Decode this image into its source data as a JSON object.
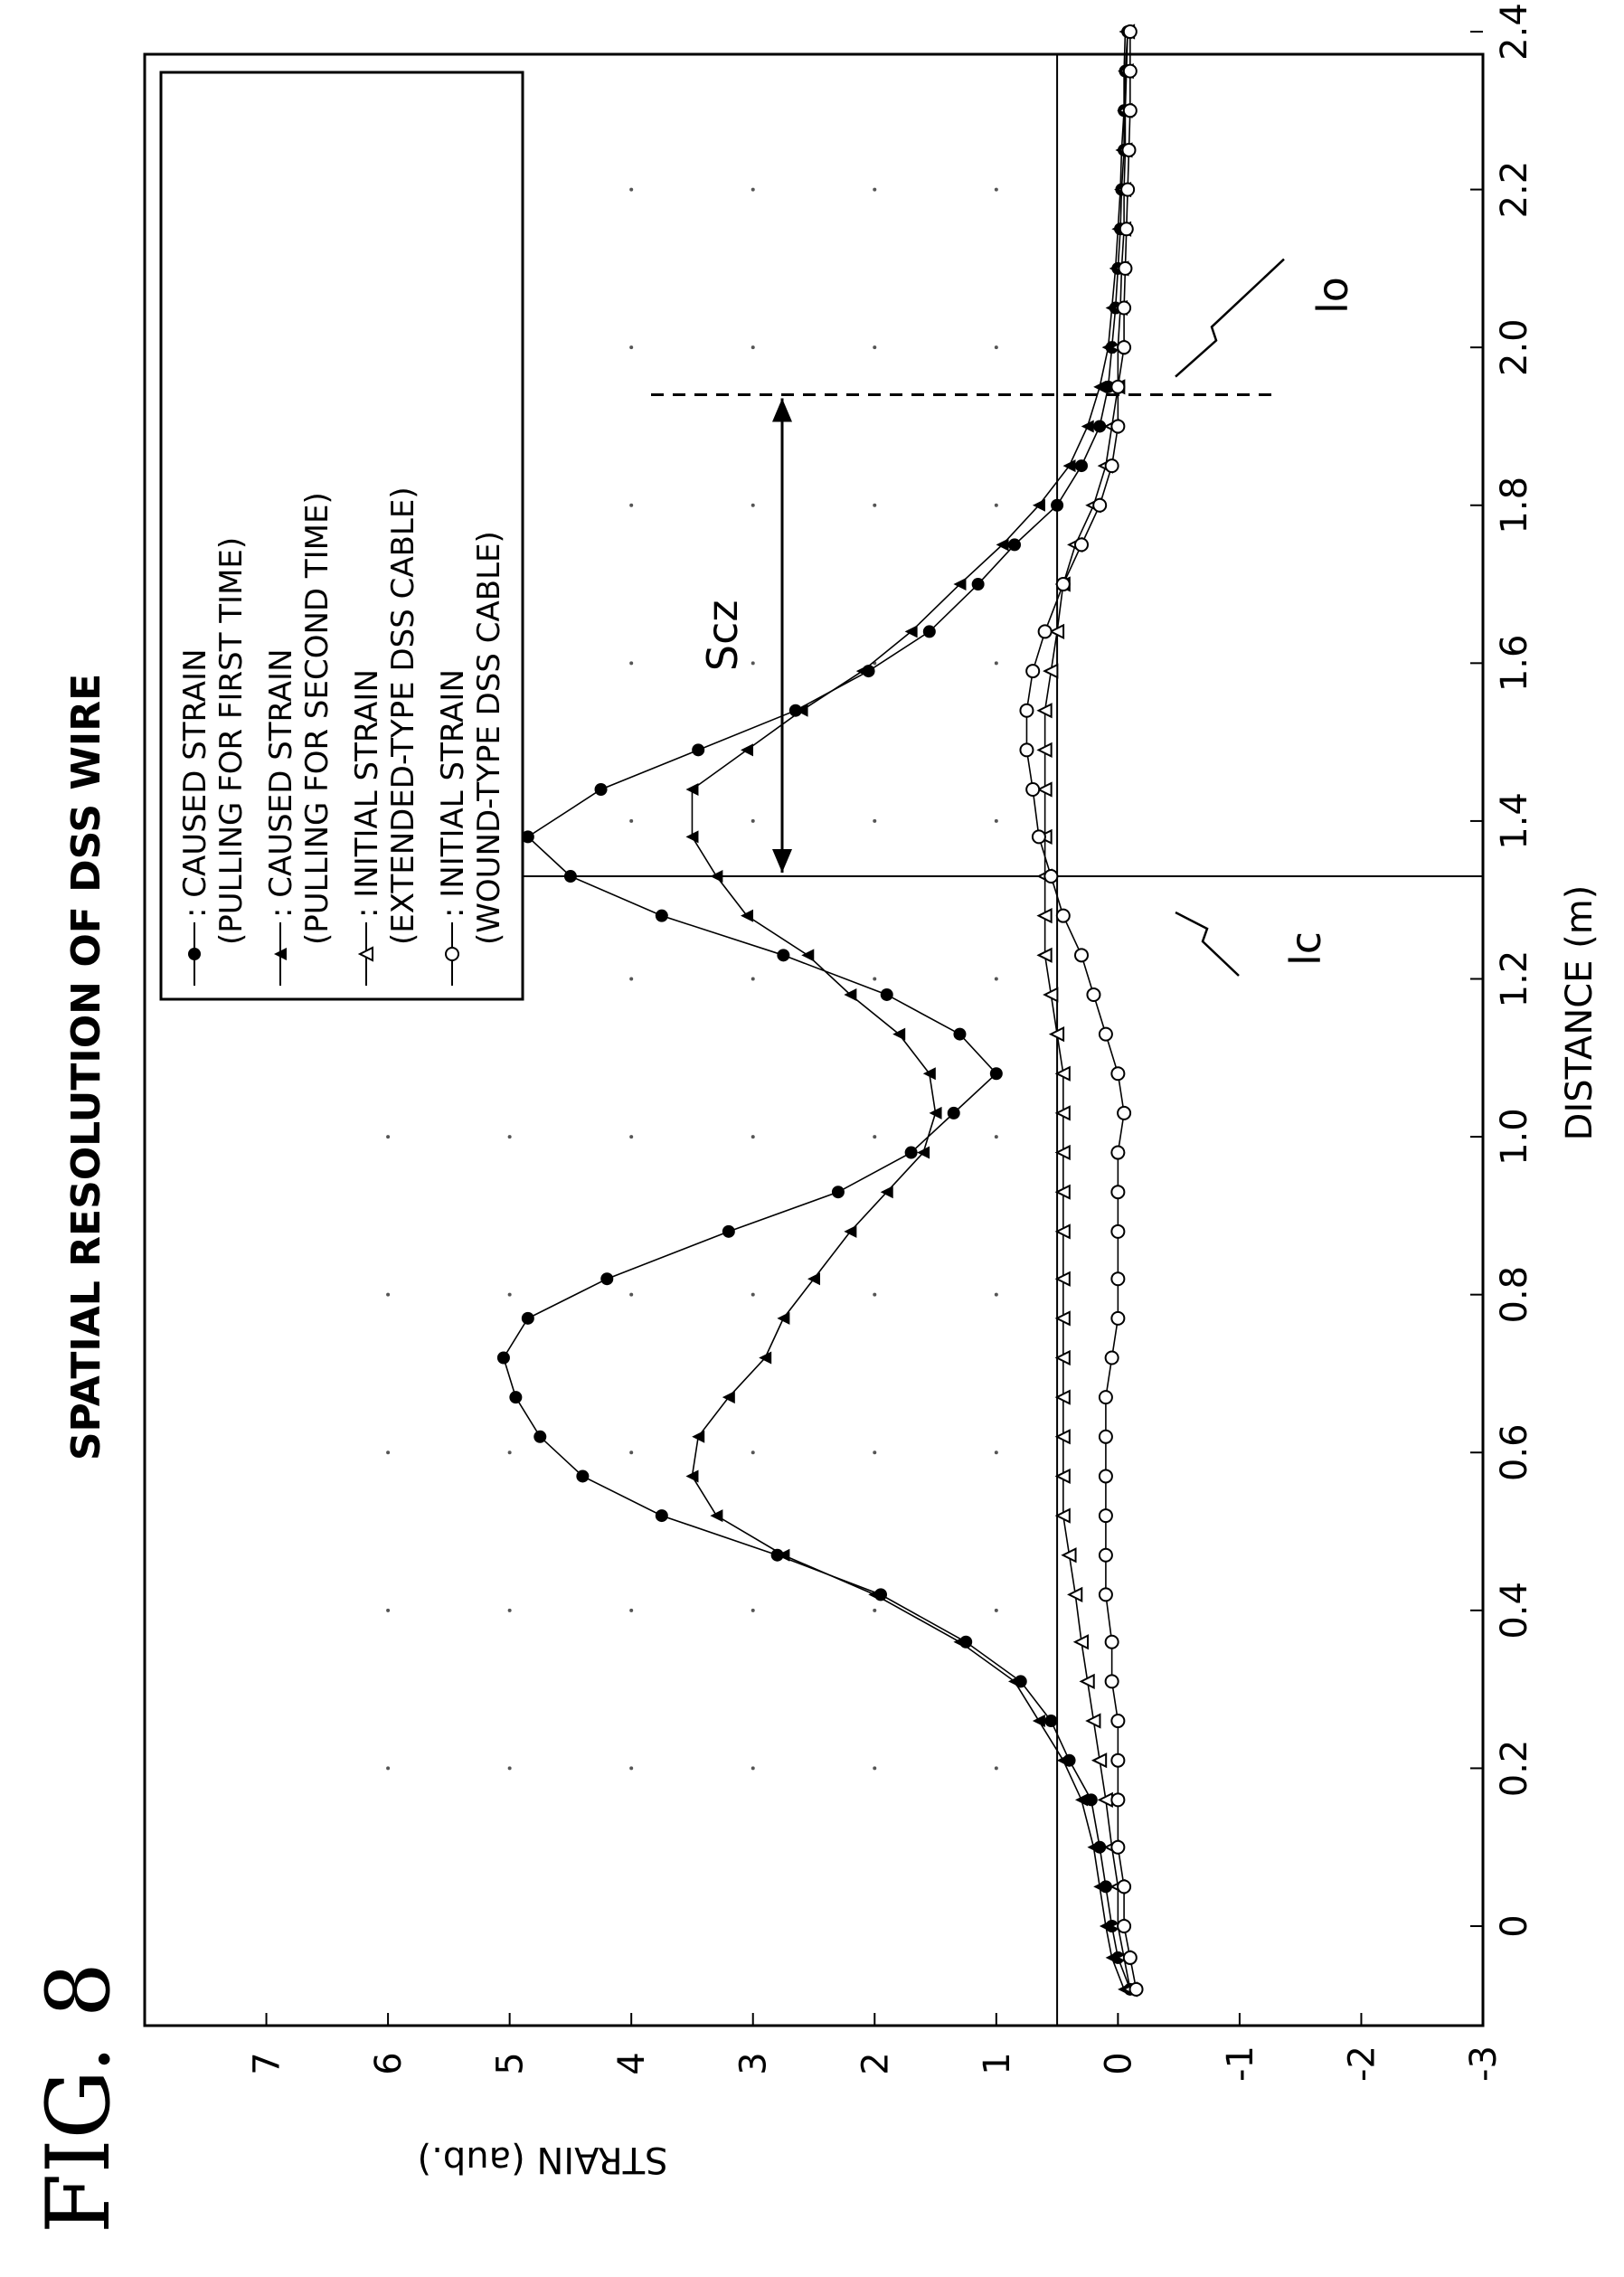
{
  "figure_label": "FIG. 8",
  "chart_data": {
    "type": "line",
    "title": "SPATIAL RESOLUTION OF DSS WIRE",
    "xlabel": "DISTANCE (m)",
    "ylabel": "STRAIN (aub.)",
    "xlim": [
      -0.1,
      2.4
    ],
    "ylim": [
      -3,
      8
    ],
    "xticks": [
      "0",
      "0.2",
      "0.4",
      "0.6",
      "0.8",
      "1.0",
      "1.2",
      "1.4",
      "1.6",
      "1.8",
      "2.0",
      "2.2",
      "2.4"
    ],
    "yticks": [
      "-3",
      "-2",
      "-1",
      "0",
      "1",
      "2",
      "3",
      "4",
      "5",
      "6",
      "7"
    ],
    "reference_lines": {
      "horizontal_y": 0.5,
      "vertical_x": 1.33
    },
    "annotations": {
      "lc": {
        "label": "lc",
        "x": 1.33
      },
      "lo": {
        "label": "lo",
        "x": 1.94
      },
      "scz": {
        "label": "Scz",
        "x_from": 1.33,
        "x_to": 1.94
      }
    },
    "legend_placement": "top-right",
    "series": [
      {
        "name": ": CAUSED STRAIN",
        "name_line2": "(PULLING FOR FIRST TIME)",
        "marker": "filled-circle",
        "x": [
          -0.08,
          -0.04,
          0.0,
          0.05,
          0.1,
          0.16,
          0.21,
          0.26,
          0.31,
          0.36,
          0.42,
          0.47,
          0.52,
          0.57,
          0.62,
          0.67,
          0.72,
          0.77,
          0.82,
          0.88,
          0.93,
          0.98,
          1.03,
          1.08,
          1.13,
          1.18,
          1.23,
          1.28,
          1.33,
          1.38,
          1.44,
          1.49,
          1.54,
          1.59,
          1.64,
          1.7,
          1.75,
          1.8,
          1.85,
          1.9,
          1.95,
          2.0,
          2.05,
          2.1,
          2.15,
          2.2,
          2.25,
          2.3,
          2.35,
          2.4
        ],
        "y": [
          -0.1,
          0.0,
          0.05,
          0.1,
          0.15,
          0.22,
          0.4,
          0.55,
          0.8,
          1.25,
          1.95,
          2.8,
          3.75,
          4.4,
          4.75,
          4.95,
          5.05,
          4.85,
          4.2,
          3.2,
          2.3,
          1.7,
          1.35,
          1.0,
          1.3,
          1.9,
          2.75,
          3.75,
          4.5,
          4.85,
          4.25,
          3.45,
          2.65,
          2.05,
          1.55,
          1.15,
          0.85,
          0.5,
          0.3,
          0.15,
          0.08,
          0.05,
          0.02,
          0.0,
          -0.02,
          -0.03,
          -0.05,
          -0.05,
          -0.06,
          -0.08
        ]
      },
      {
        "name": ": CAUSED STRAIN",
        "name_line2": "(PULLING FOR SECOND TIME)",
        "marker": "filled-triangle",
        "x": [
          -0.08,
          -0.04,
          0.0,
          0.05,
          0.1,
          0.16,
          0.21,
          0.26,
          0.31,
          0.36,
          0.42,
          0.47,
          0.52,
          0.57,
          0.62,
          0.67,
          0.72,
          0.77,
          0.82,
          0.88,
          0.93,
          0.98,
          1.03,
          1.08,
          1.13,
          1.18,
          1.23,
          1.28,
          1.33,
          1.38,
          1.44,
          1.49,
          1.54,
          1.59,
          1.64,
          1.7,
          1.75,
          1.8,
          1.85,
          1.9,
          1.95,
          2.0,
          2.05,
          2.1,
          2.15,
          2.2,
          2.25,
          2.3,
          2.35,
          2.4
        ],
        "y": [
          -0.05,
          0.05,
          0.1,
          0.15,
          0.2,
          0.3,
          0.45,
          0.65,
          0.85,
          1.3,
          2.0,
          2.75,
          3.3,
          3.5,
          3.45,
          3.2,
          2.9,
          2.75,
          2.5,
          2.2,
          1.9,
          1.6,
          1.5,
          1.55,
          1.8,
          2.2,
          2.55,
          3.05,
          3.3,
          3.5,
          3.5,
          3.05,
          2.6,
          2.1,
          1.7,
          1.3,
          0.95,
          0.65,
          0.4,
          0.25,
          0.15,
          0.08,
          0.05,
          0.02,
          0.0,
          -0.02,
          -0.03,
          -0.05,
          -0.05,
          -0.06
        ]
      },
      {
        "name": ": INITIAL STRAIN",
        "name_line2": "(EXTENDED-TYPE DSS CABLE)",
        "marker": "open-triangle",
        "x": [
          -0.08,
          -0.04,
          0.0,
          0.05,
          0.1,
          0.16,
          0.21,
          0.26,
          0.31,
          0.36,
          0.42,
          0.47,
          0.52,
          0.57,
          0.62,
          0.67,
          0.72,
          0.77,
          0.82,
          0.88,
          0.93,
          0.98,
          1.03,
          1.08,
          1.13,
          1.18,
          1.23,
          1.28,
          1.33,
          1.38,
          1.44,
          1.49,
          1.54,
          1.59,
          1.64,
          1.7,
          1.75,
          1.8,
          1.85,
          1.9,
          1.95,
          2.0,
          2.05,
          2.1,
          2.15,
          2.2,
          2.25,
          2.3,
          2.35,
          2.4
        ],
        "y": [
          -0.1,
          -0.05,
          0.0,
          0.0,
          0.05,
          0.1,
          0.15,
          0.2,
          0.25,
          0.3,
          0.35,
          0.4,
          0.45,
          0.45,
          0.45,
          0.45,
          0.45,
          0.45,
          0.45,
          0.45,
          0.45,
          0.45,
          0.45,
          0.45,
          0.5,
          0.55,
          0.6,
          0.6,
          0.6,
          0.6,
          0.6,
          0.6,
          0.6,
          0.55,
          0.5,
          0.45,
          0.35,
          0.2,
          0.1,
          0.05,
          0.0,
          0.0,
          -0.02,
          -0.03,
          -0.05,
          -0.05,
          -0.06,
          -0.06,
          -0.07,
          -0.08
        ]
      },
      {
        "name": ": INITIAL STRAIN",
        "name_line2": "(WOUND-TYPE DSS CABLE)",
        "marker": "open-circle",
        "x": [
          -0.08,
          -0.04,
          0.0,
          0.05,
          0.1,
          0.16,
          0.21,
          0.26,
          0.31,
          0.36,
          0.42,
          0.47,
          0.52,
          0.57,
          0.62,
          0.67,
          0.72,
          0.77,
          0.82,
          0.88,
          0.93,
          0.98,
          1.03,
          1.08,
          1.13,
          1.18,
          1.23,
          1.28,
          1.33,
          1.38,
          1.44,
          1.49,
          1.54,
          1.59,
          1.64,
          1.7,
          1.75,
          1.8,
          1.85,
          1.9,
          1.95,
          2.0,
          2.05,
          2.1,
          2.15,
          2.2,
          2.25,
          2.3,
          2.35,
          2.4
        ],
        "y": [
          -0.15,
          -0.1,
          -0.05,
          -0.05,
          0.0,
          0.0,
          0.0,
          0.0,
          0.05,
          0.05,
          0.1,
          0.1,
          0.1,
          0.1,
          0.1,
          0.1,
          0.05,
          0.0,
          0.0,
          0.0,
          0.0,
          0.0,
          -0.05,
          0.0,
          0.1,
          0.2,
          0.3,
          0.45,
          0.55,
          0.65,
          0.7,
          0.75,
          0.75,
          0.7,
          0.6,
          0.45,
          0.3,
          0.15,
          0.05,
          0.0,
          0.0,
          -0.05,
          -0.05,
          -0.06,
          -0.07,
          -0.08,
          -0.09,
          -0.1,
          -0.1,
          -0.1
        ]
      }
    ]
  }
}
